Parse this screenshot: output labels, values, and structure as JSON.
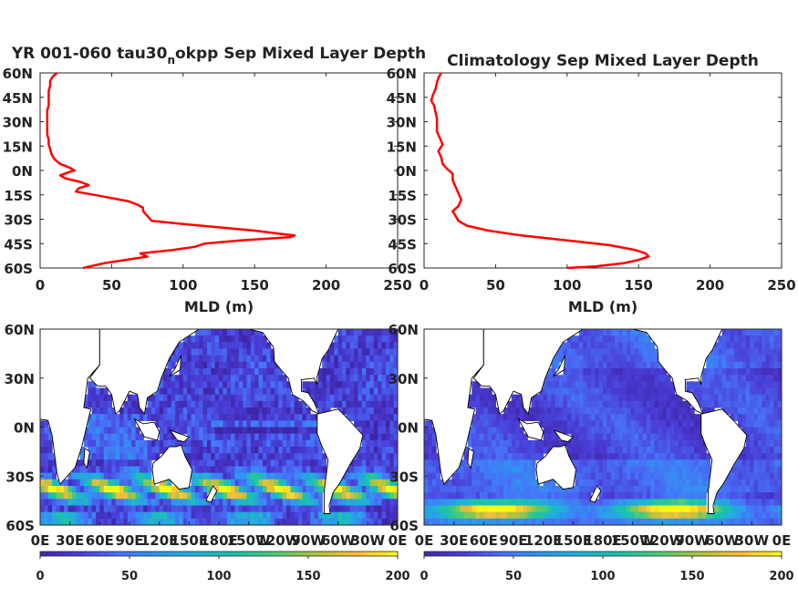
{
  "chart_data": [
    {
      "type": "line",
      "panel": "model-profile",
      "title_main": "YR 001-060 tau30",
      "title_sub": "n",
      "title_rest": "okpp Sep Mixed Layer Depth",
      "xlabel": "MLD (m)",
      "xlim": [
        0,
        250
      ],
      "x_ticks": [
        "0",
        "50",
        "100",
        "150",
        "200",
        "250"
      ],
      "ylim": [
        -60,
        60
      ],
      "y_ticks": [
        "60N",
        "45N",
        "30N",
        "15N",
        "0N",
        "15S",
        "30S",
        "45S",
        "60S"
      ],
      "series_color": "#ff0000",
      "series": [
        {
          "lat": [
            60,
            58,
            55,
            52,
            49,
            46,
            43,
            40,
            37,
            34,
            31,
            28,
            25,
            22,
            19,
            16,
            13,
            10,
            7,
            4,
            2,
            0,
            -1,
            -3,
            -5,
            -7,
            -9,
            -11,
            -13,
            -15,
            -17,
            -19,
            -21,
            -23,
            -25,
            -27,
            -29,
            -31,
            -33,
            -35,
            -37,
            -39,
            -40,
            -41,
            -43,
            -45,
            -47,
            -49,
            -51,
            -53,
            -55,
            -57,
            -59,
            -60
          ],
          "mld": [
            12,
            9,
            7,
            7,
            6,
            6,
            6,
            6,
            5,
            5,
            5,
            5,
            5,
            5,
            6,
            6,
            7,
            8,
            10,
            14,
            20,
            24,
            20,
            14,
            18,
            28,
            34,
            27,
            25,
            38,
            50,
            62,
            68,
            72,
            72,
            74,
            76,
            78,
            100,
            125,
            150,
            168,
            178,
            175,
            140,
            115,
            108,
            92,
            70,
            75,
            60,
            45,
            35,
            30
          ]
        }
      ]
    },
    {
      "type": "line",
      "panel": "climatology-profile",
      "title": "Climatology Sep Mixed Layer Depth",
      "xlabel": "MLD (m)",
      "xlim": [
        0,
        250
      ],
      "x_ticks": [
        "0",
        "50",
        "100",
        "150",
        "200",
        "250"
      ],
      "ylim": [
        -60,
        60
      ],
      "y_ticks": [
        "60N",
        "45N",
        "30N",
        "15N",
        "0N",
        "15S",
        "30S",
        "45S",
        "60S"
      ],
      "series_color": "#ff0000",
      "series": [
        {
          "lat": [
            60,
            57,
            54,
            50,
            46,
            43,
            40,
            36,
            32,
            28,
            24,
            20,
            16,
            12,
            8,
            4,
            1,
            -2,
            -6,
            -10,
            -14,
            -18,
            -22,
            -25,
            -28,
            -31,
            -34,
            -37,
            -40,
            -43,
            -46,
            -49,
            -51,
            -53,
            -55,
            -57,
            -59,
            -60
          ],
          "mld": [
            12,
            10,
            9,
            8,
            6,
            5,
            7,
            8,
            9,
            9,
            9,
            11,
            13,
            10,
            12,
            13,
            16,
            20,
            20,
            22,
            24,
            26,
            24,
            20,
            22,
            24,
            30,
            45,
            68,
            100,
            130,
            148,
            155,
            157,
            150,
            140,
            120,
            100
          ]
        }
      ]
    },
    {
      "type": "heatmap",
      "panel": "model-map",
      "x_ticks": [
        "0E",
        "30E",
        "60E",
        "90E",
        "120E",
        "150E",
        "180E",
        "150W",
        "120W",
        "90W",
        "60W",
        "30W",
        "0E"
      ],
      "y_ticks": [
        "60N",
        "30N",
        "0N",
        "30S",
        "60S"
      ],
      "lon_range": [
        0,
        360
      ],
      "lat_range": [
        -60,
        60
      ],
      "colorbar_ticks": [
        "0",
        "50",
        "100",
        "150",
        "200"
      ],
      "clim": [
        0,
        200
      ],
      "colormap": [
        "#3e26a8",
        "#4a3fd8",
        "#4772f9",
        "#2e98ed",
        "#1fb4d3",
        "#19c4a6",
        "#55cc70",
        "#b8c23c",
        "#fbbe3a",
        "#f9fb15"
      ]
    },
    {
      "type": "heatmap",
      "panel": "climatology-map",
      "x_ticks": [
        "0E",
        "30E",
        "60E",
        "90E",
        "120E",
        "150E",
        "180E",
        "150W",
        "120W",
        "90W",
        "60W",
        "30W",
        "0E"
      ],
      "y_ticks": [
        "60N",
        "30N",
        "0N",
        "30S",
        "60S"
      ],
      "lon_range": [
        0,
        360
      ],
      "lat_range": [
        -60,
        60
      ],
      "colorbar_ticks": [
        "0",
        "50",
        "100",
        "150",
        "200"
      ],
      "clim": [
        0,
        200
      ],
      "colormap": [
        "#3e26a8",
        "#4a3fd8",
        "#4772f9",
        "#2e98ed",
        "#1fb4d3",
        "#19c4a6",
        "#55cc70",
        "#b8c23c",
        "#fbbe3a",
        "#f9fb15"
      ]
    }
  ]
}
